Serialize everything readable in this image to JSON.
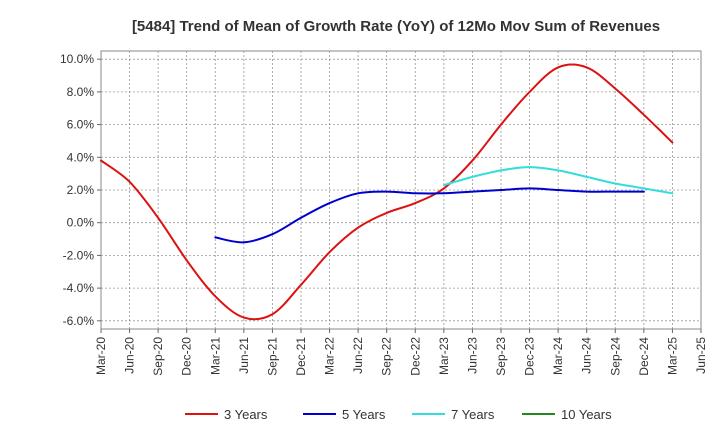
{
  "chart_data": {
    "type": "line",
    "title": "[5484]  Trend of Mean of Growth Rate (YoY) of 12Mo Mov Sum of Revenues",
    "xlabel": "",
    "ylabel": "",
    "ylim": [
      -6.5,
      10.5
    ],
    "y_ticks": [
      10,
      8,
      6,
      4,
      2,
      0,
      -2,
      -4,
      -6
    ],
    "y_tick_labels": [
      "10.0%",
      "8.0%",
      "6.0%",
      "4.0%",
      "2.0%",
      "0.0%",
      "-2.0%",
      "-4.0%",
      "-6.0%"
    ],
    "x_tick_labels": [
      "Mar-20",
      "Jun-20",
      "Sep-20",
      "Dec-20",
      "Mar-21",
      "Jun-21",
      "Sep-21",
      "Dec-21",
      "Mar-22",
      "Jun-22",
      "Sep-22",
      "Dec-22",
      "Mar-23",
      "Jun-23",
      "Sep-23",
      "Dec-23",
      "Mar-24",
      "Jun-24",
      "Sep-24",
      "Dec-24",
      "Mar-25",
      "Jun-25"
    ],
    "grid": true,
    "legend_position": "bottom",
    "series": [
      {
        "name": "3 Years",
        "color": "#dd1111",
        "start_index": 0,
        "values": [
          3.8,
          2.5,
          0.3,
          -2.3,
          -4.5,
          -5.8,
          -5.6,
          -3.8,
          -1.8,
          -0.3,
          0.6,
          1.2,
          2.1,
          3.8,
          6.0,
          8.0,
          9.5,
          9.5,
          8.2,
          6.6,
          4.9
        ]
      },
      {
        "name": "5 Years",
        "color": "#0000cc",
        "start_index": 4,
        "values": [
          -0.9,
          -1.2,
          -0.7,
          0.3,
          1.2,
          1.8,
          1.9,
          1.8,
          1.8,
          1.9,
          2.0,
          2.1,
          2.0,
          1.9,
          1.9,
          1.9
        ]
      },
      {
        "name": "7 Years",
        "color": "#33dddd",
        "start_index": 12,
        "values": [
          2.3,
          2.8,
          3.2,
          3.4,
          3.2,
          2.8,
          2.4,
          2.1,
          1.8
        ]
      },
      {
        "name": "10 Years",
        "color": "#228822",
        "start_index": 0,
        "values": []
      }
    ]
  }
}
